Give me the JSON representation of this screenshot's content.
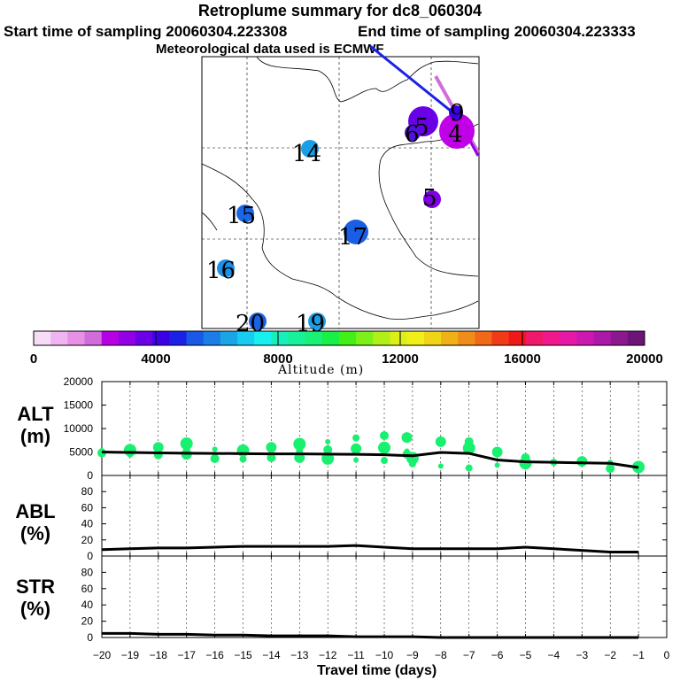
{
  "header": {
    "title": "Retroplume summary for dc8_060304",
    "start_time": "Start time of sampling 20060304.223308",
    "end_time": "End time of sampling 20060304.223333",
    "met_source": "Meteorological data used is ECMWF"
  },
  "colors": {
    "altitude_scale": [
      "#f6dcf6",
      "#f0b4f0",
      "#e690e6",
      "#d36cdb",
      "#b800e4",
      "#9200e6",
      "#6a00e6",
      "#3c00e6",
      "#1a22e6",
      "#1a58e6",
      "#1a7ee6",
      "#1aa6e6",
      "#18ccf0",
      "#18f0f0",
      "#18f0bc",
      "#18f09a",
      "#18f076",
      "#18f048",
      "#42f018",
      "#7cf018",
      "#b0f018",
      "#dcf018",
      "#f0f018",
      "#f0d418",
      "#f0b018",
      "#f08c18",
      "#f06818",
      "#f03a18",
      "#f01818",
      "#f01868",
      "#f0188c",
      "#e618a6",
      "#cc18b0",
      "#ac18a8",
      "#8c1890",
      "#6e1478"
    ],
    "alt_points": "#18f070",
    "line": "#000000"
  },
  "map": {
    "markers": [
      {
        "label": "14",
        "color": "#1a9ee6"
      },
      {
        "label": "15",
        "color": "#1a66e6"
      },
      {
        "label": "16",
        "color": "#1a90e6"
      },
      {
        "label": "17",
        "color": "#1a5ee6"
      },
      {
        "label": "19",
        "color": "#1a9ee6"
      },
      {
        "label": "20",
        "color": "#1a62e6"
      },
      {
        "label": "5",
        "color": "#8000e6"
      },
      {
        "label": "5",
        "color": "#6a00e6"
      },
      {
        "label": "4",
        "color": "#c000e6"
      },
      {
        "label": "6",
        "color": "#5010e0"
      },
      {
        "label": "9",
        "color": "#3c00e6"
      }
    ]
  },
  "colorbar": {
    "title": "Altitude (m)",
    "tick_labels": [
      "0",
      "4000",
      "8000",
      "12000",
      "16000",
      "20000"
    ]
  },
  "panels": {
    "alt_label": [
      "ALT",
      "(m)"
    ],
    "abl_label": [
      "ABL",
      "(%)"
    ],
    "str_label": [
      "STR",
      "(%)"
    ],
    "x_label": "Travel time (days)"
  },
  "chart_data": [
    {
      "type": "line",
      "title": "ALT (m)",
      "ylabel": "ALT (m)",
      "ylim": [
        0,
        20000
      ],
      "xlim": [
        -20,
        0
      ],
      "yticks": [
        0,
        5000,
        10000,
        15000,
        20000
      ],
      "x": [
        -20,
        -19,
        -18,
        -17,
        -16,
        -15,
        -14,
        -13,
        -12,
        -11,
        -10,
        -9.5,
        -9,
        -8,
        -7,
        -6,
        -5,
        -4,
        -3,
        -2,
        -1
      ],
      "series": [
        {
          "name": "mean altitude",
          "values": [
            5000,
            4900,
            4800,
            4750,
            4700,
            4650,
            4600,
            4600,
            4550,
            4500,
            4400,
            4300,
            4200,
            4900,
            4700,
            3300,
            2900,
            2800,
            2700,
            2600,
            1700
          ]
        }
      ],
      "scatter": [
        {
          "x": -20,
          "y": 5300
        },
        {
          "x": -20,
          "y": 4800
        },
        {
          "x": -19,
          "y": 5400
        },
        {
          "x": -19,
          "y": 4600
        },
        {
          "x": -18,
          "y": 6000
        },
        {
          "x": -18,
          "y": 5200
        },
        {
          "x": -18,
          "y": 4400
        },
        {
          "x": -17,
          "y": 6800
        },
        {
          "x": -17,
          "y": 5600
        },
        {
          "x": -17,
          "y": 4500
        },
        {
          "x": -16,
          "y": 5600
        },
        {
          "x": -16,
          "y": 3600
        },
        {
          "x": -15,
          "y": 5300
        },
        {
          "x": -15,
          "y": 3500
        },
        {
          "x": -14,
          "y": 6000
        },
        {
          "x": -14,
          "y": 5000
        },
        {
          "x": -14,
          "y": 3800
        },
        {
          "x": -13,
          "y": 6700
        },
        {
          "x": -13,
          "y": 5200
        },
        {
          "x": -13,
          "y": 3800
        },
        {
          "x": -12,
          "y": 7200
        },
        {
          "x": -12,
          "y": 5500
        },
        {
          "x": -12,
          "y": 3600
        },
        {
          "x": -11,
          "y": 8000
        },
        {
          "x": -11,
          "y": 5700
        },
        {
          "x": -11,
          "y": 3300
        },
        {
          "x": -10,
          "y": 8500
        },
        {
          "x": -10,
          "y": 5900
        },
        {
          "x": -10,
          "y": 3200
        },
        {
          "x": -9.2,
          "y": 8100
        },
        {
          "x": -9.2,
          "y": 5200
        },
        {
          "x": -9.2,
          "y": 4500
        },
        {
          "x": -9,
          "y": 3700
        },
        {
          "x": -9,
          "y": 2500
        },
        {
          "x": -8,
          "y": 7200
        },
        {
          "x": -8,
          "y": 2000
        },
        {
          "x": -7,
          "y": 7200
        },
        {
          "x": -7,
          "y": 5800
        },
        {
          "x": -7,
          "y": 1600
        },
        {
          "x": -6,
          "y": 5000
        },
        {
          "x": -6,
          "y": 2200
        },
        {
          "x": -5,
          "y": 3800
        },
        {
          "x": -5,
          "y": 2600
        },
        {
          "x": -4,
          "y": 2800
        },
        {
          "x": -3,
          "y": 3000
        },
        {
          "x": -2,
          "y": 2800
        },
        {
          "x": -2,
          "y": 1500
        },
        {
          "x": -1,
          "y": 1800
        }
      ]
    },
    {
      "type": "line",
      "title": "ABL (%)",
      "ylabel": "ABL (%)",
      "ylim": [
        0,
        100
      ],
      "xlim": [
        -20,
        0
      ],
      "yticks": [
        0,
        20,
        40,
        60,
        80
      ],
      "x": [
        -20,
        -19,
        -18,
        -17,
        -16,
        -15,
        -14,
        -13,
        -12,
        -11,
        -10,
        -9,
        -8,
        -7,
        -6,
        -5,
        -4,
        -3,
        -2,
        -1
      ],
      "series": [
        {
          "name": "ABL fraction",
          "values": [
            8,
            9,
            10,
            10,
            11,
            12,
            12,
            12,
            12,
            13,
            11,
            9,
            9,
            9,
            9,
            11,
            9,
            7,
            5,
            5
          ]
        }
      ]
    },
    {
      "type": "line",
      "title": "STR (%)",
      "ylabel": "STR (%)",
      "ylim": [
        0,
        100
      ],
      "xlim": [
        -20,
        0
      ],
      "yticks": [
        0,
        20,
        40,
        60,
        80
      ],
      "x": [
        -20,
        -19,
        -18,
        -17,
        -16,
        -15,
        -14,
        -13,
        -12,
        -11,
        -10,
        -9,
        -8,
        -7,
        -6,
        -5,
        -4,
        -3,
        -2,
        -1
      ],
      "series": [
        {
          "name": "STR fraction",
          "values": [
            5,
            5,
            4,
            4,
            3,
            3,
            2,
            2,
            2,
            1,
            1,
            1,
            0,
            0,
            0,
            0,
            0,
            0,
            0,
            0
          ]
        }
      ],
      "xlabel": "Travel time (days)",
      "xticks": [
        -20,
        -19,
        -18,
        -17,
        -16,
        -15,
        -14,
        -13,
        -12,
        -11,
        -10,
        -9,
        -8,
        -7,
        -6,
        -5,
        -4,
        -3,
        -2,
        -1,
        0
      ]
    }
  ]
}
